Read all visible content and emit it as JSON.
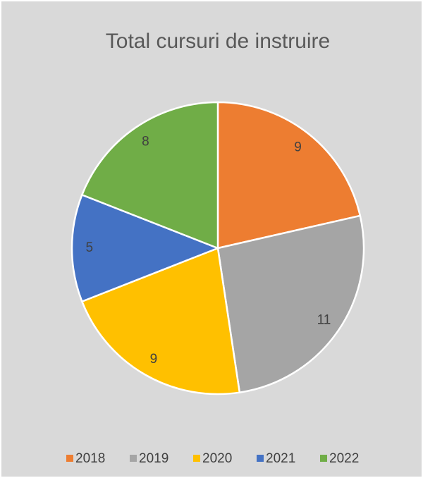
{
  "chart_data": {
    "type": "pie",
    "title": "Total cursuri de instruire",
    "categories": [
      "2018",
      "2019",
      "2020",
      "2021",
      "2022"
    ],
    "values": [
      9,
      11,
      9,
      5,
      8
    ],
    "colors": [
      "#ed7d31",
      "#a5a5a5",
      "#ffc000",
      "#4472c4",
      "#70ad47"
    ],
    "legend": "bottom"
  }
}
